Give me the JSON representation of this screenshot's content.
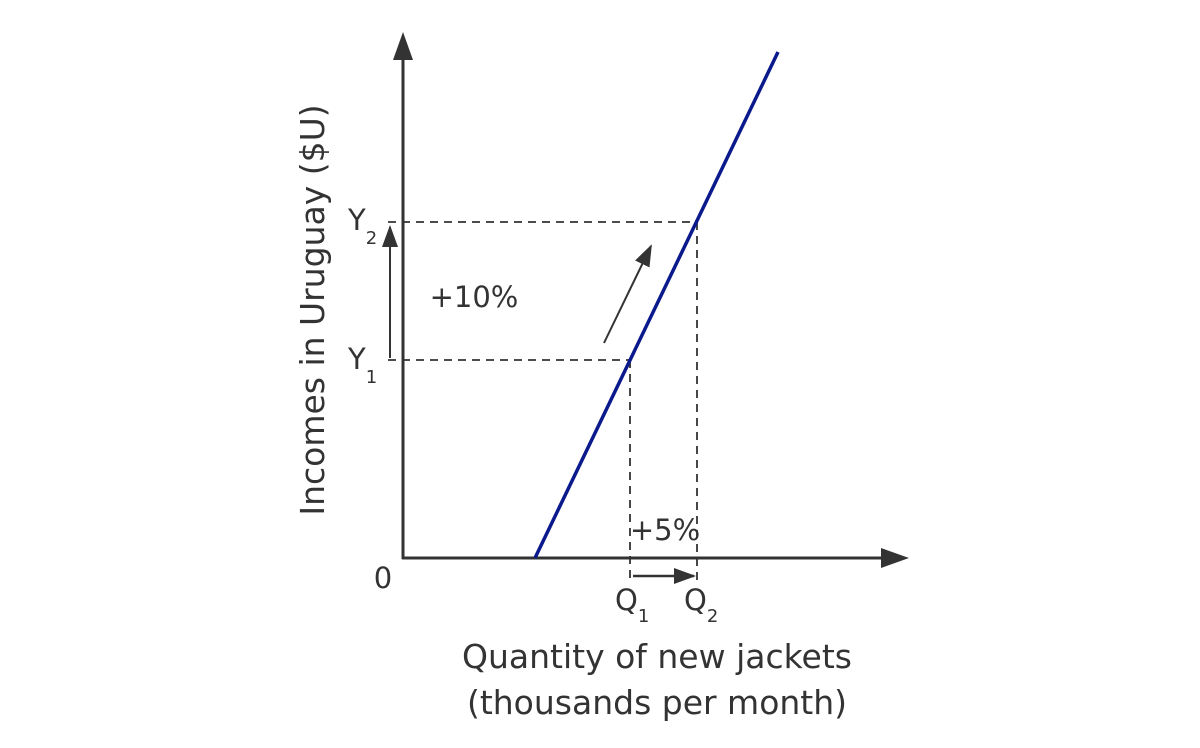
{
  "diagram": {
    "y_axis_label": "Incomes in Uruguay ($U)",
    "x_axis_label": [
      "Quantity of new jackets",
      "(thousands per month)"
    ],
    "origin_label": "0",
    "y_levels": [
      {
        "letter": "Y",
        "sub": "1"
      },
      {
        "letter": "Y",
        "sub": "2"
      }
    ],
    "x_levels": [
      {
        "letter": "Q",
        "sub": "1"
      },
      {
        "letter": "Q",
        "sub": "2"
      }
    ],
    "income_change": "+10%",
    "quantity_change": "+5%"
  }
}
